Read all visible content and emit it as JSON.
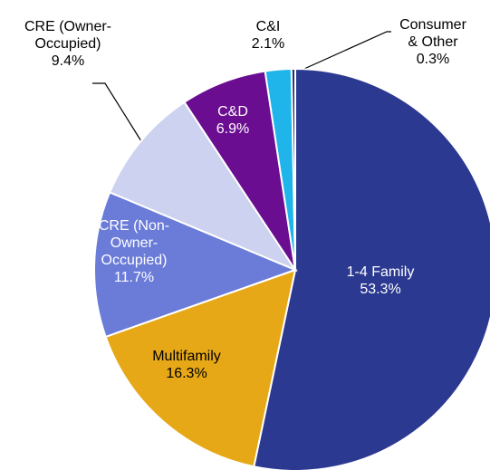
{
  "chart_data": {
    "type": "pie",
    "categories": [
      "1-4 Family",
      "Multifamily",
      "CRE (Non-\nOwner-\nOccupied)",
      "CRE (Owner-\nOccupied)",
      "C&D",
      "C&I",
      "Consumer\n& Other"
    ],
    "values": [
      53.3,
      16.3,
      11.7,
      9.4,
      6.9,
      2.1,
      0.3
    ],
    "value_labels": [
      "53.3%",
      "16.3%",
      "11.7%",
      "9.4%",
      "6.9%",
      "2.1%",
      "0.3%"
    ],
    "colors": [
      "#2b3990",
      "#e6a817",
      "#6a7bd8",
      "#cdd2f0",
      "#6a0d91",
      "#1fb5ea",
      "#1f2f6e"
    ]
  }
}
